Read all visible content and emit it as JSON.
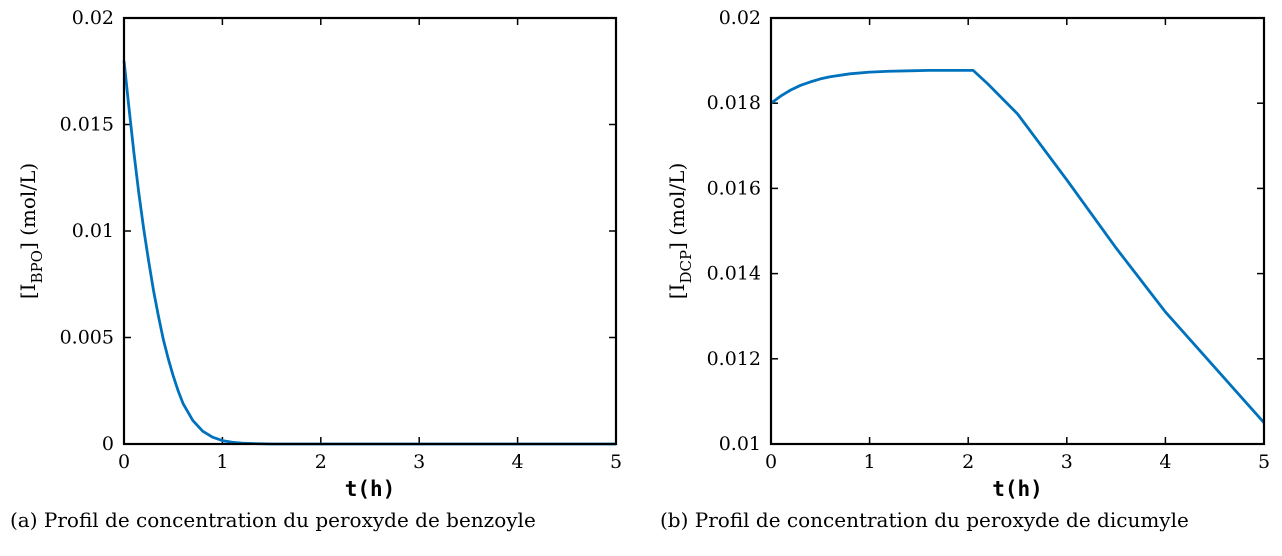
{
  "chart_data": [
    {
      "type": "line",
      "caption": "(a) Profil de concentration du peroxyde de benzoyle",
      "xlabel": "t(h)",
      "ylabel": {
        "prefix": "[I",
        "sub": "BPO",
        "suffix": "] (mol/L)"
      },
      "xlim": [
        0,
        5
      ],
      "ylim": [
        0,
        0.02
      ],
      "xticks": [
        0,
        1,
        2,
        3,
        4,
        5
      ],
      "xtick_labels": [
        "0",
        "1",
        "2",
        "3",
        "4",
        "5"
      ],
      "yticks": [
        0,
        0.005,
        0.01,
        0.015,
        0.02
      ],
      "ytick_labels": [
        "0",
        "0.005",
        "0.01",
        "0.015",
        "0.02"
      ],
      "grid": false,
      "color": "#0072BD",
      "series": [
        {
          "x": [
            0,
            0.05,
            0.1,
            0.15,
            0.2,
            0.25,
            0.3,
            0.35,
            0.4,
            0.45,
            0.5,
            0.55,
            0.6,
            0.7,
            0.8,
            0.9,
            1.0,
            1.1,
            1.2,
            1.3,
            1.5,
            2.0,
            3.0,
            4.0,
            5.0
          ],
          "y": [
            0.018,
            0.0158,
            0.0137,
            0.0118,
            0.0101,
            0.0086,
            0.0072,
            0.006,
            0.0049,
            0.004,
            0.0032,
            0.0025,
            0.0019,
            0.0011,
            0.0006,
            0.00032,
            0.00016,
            8e-05,
            4e-05,
            2e-05,
            0.0,
            0.0,
            0.0,
            0.0,
            0.0
          ]
        }
      ]
    },
    {
      "type": "line",
      "caption": "(b) Profil de concentration du peroxyde de dicumyle",
      "xlabel": "t(h)",
      "ylabel": {
        "prefix": "[I",
        "sub": "DCP",
        "suffix": "] (mol/L)"
      },
      "xlim": [
        0,
        5
      ],
      "ylim": [
        0.01,
        0.02
      ],
      "xticks": [
        0,
        1,
        2,
        3,
        4,
        5
      ],
      "xtick_labels": [
        "0",
        "1",
        "2",
        "3",
        "4",
        "5"
      ],
      "yticks": [
        0.01,
        0.012,
        0.014,
        0.016,
        0.018,
        0.02
      ],
      "ytick_labels": [
        "0.01",
        "0.012",
        "0.014",
        "0.016",
        "0.018",
        "0.02"
      ],
      "grid": false,
      "color": "#0072BD",
      "series": [
        {
          "x": [
            0,
            0.1,
            0.2,
            0.3,
            0.4,
            0.5,
            0.6,
            0.8,
            1.0,
            1.2,
            1.4,
            1.6,
            1.8,
            2.0,
            2.05,
            2.2,
            2.5,
            3.0,
            3.5,
            4.0,
            4.5,
            5.0
          ],
          "y": [
            0.018,
            0.01817,
            0.01831,
            0.01842,
            0.0185,
            0.01857,
            0.01862,
            0.01869,
            0.01873,
            0.01875,
            0.01876,
            0.01877,
            0.01877,
            0.01877,
            0.01877,
            0.01845,
            0.01775,
            0.0162,
            0.0146,
            0.0131,
            0.0118,
            0.0105
          ]
        }
      ]
    }
  ]
}
